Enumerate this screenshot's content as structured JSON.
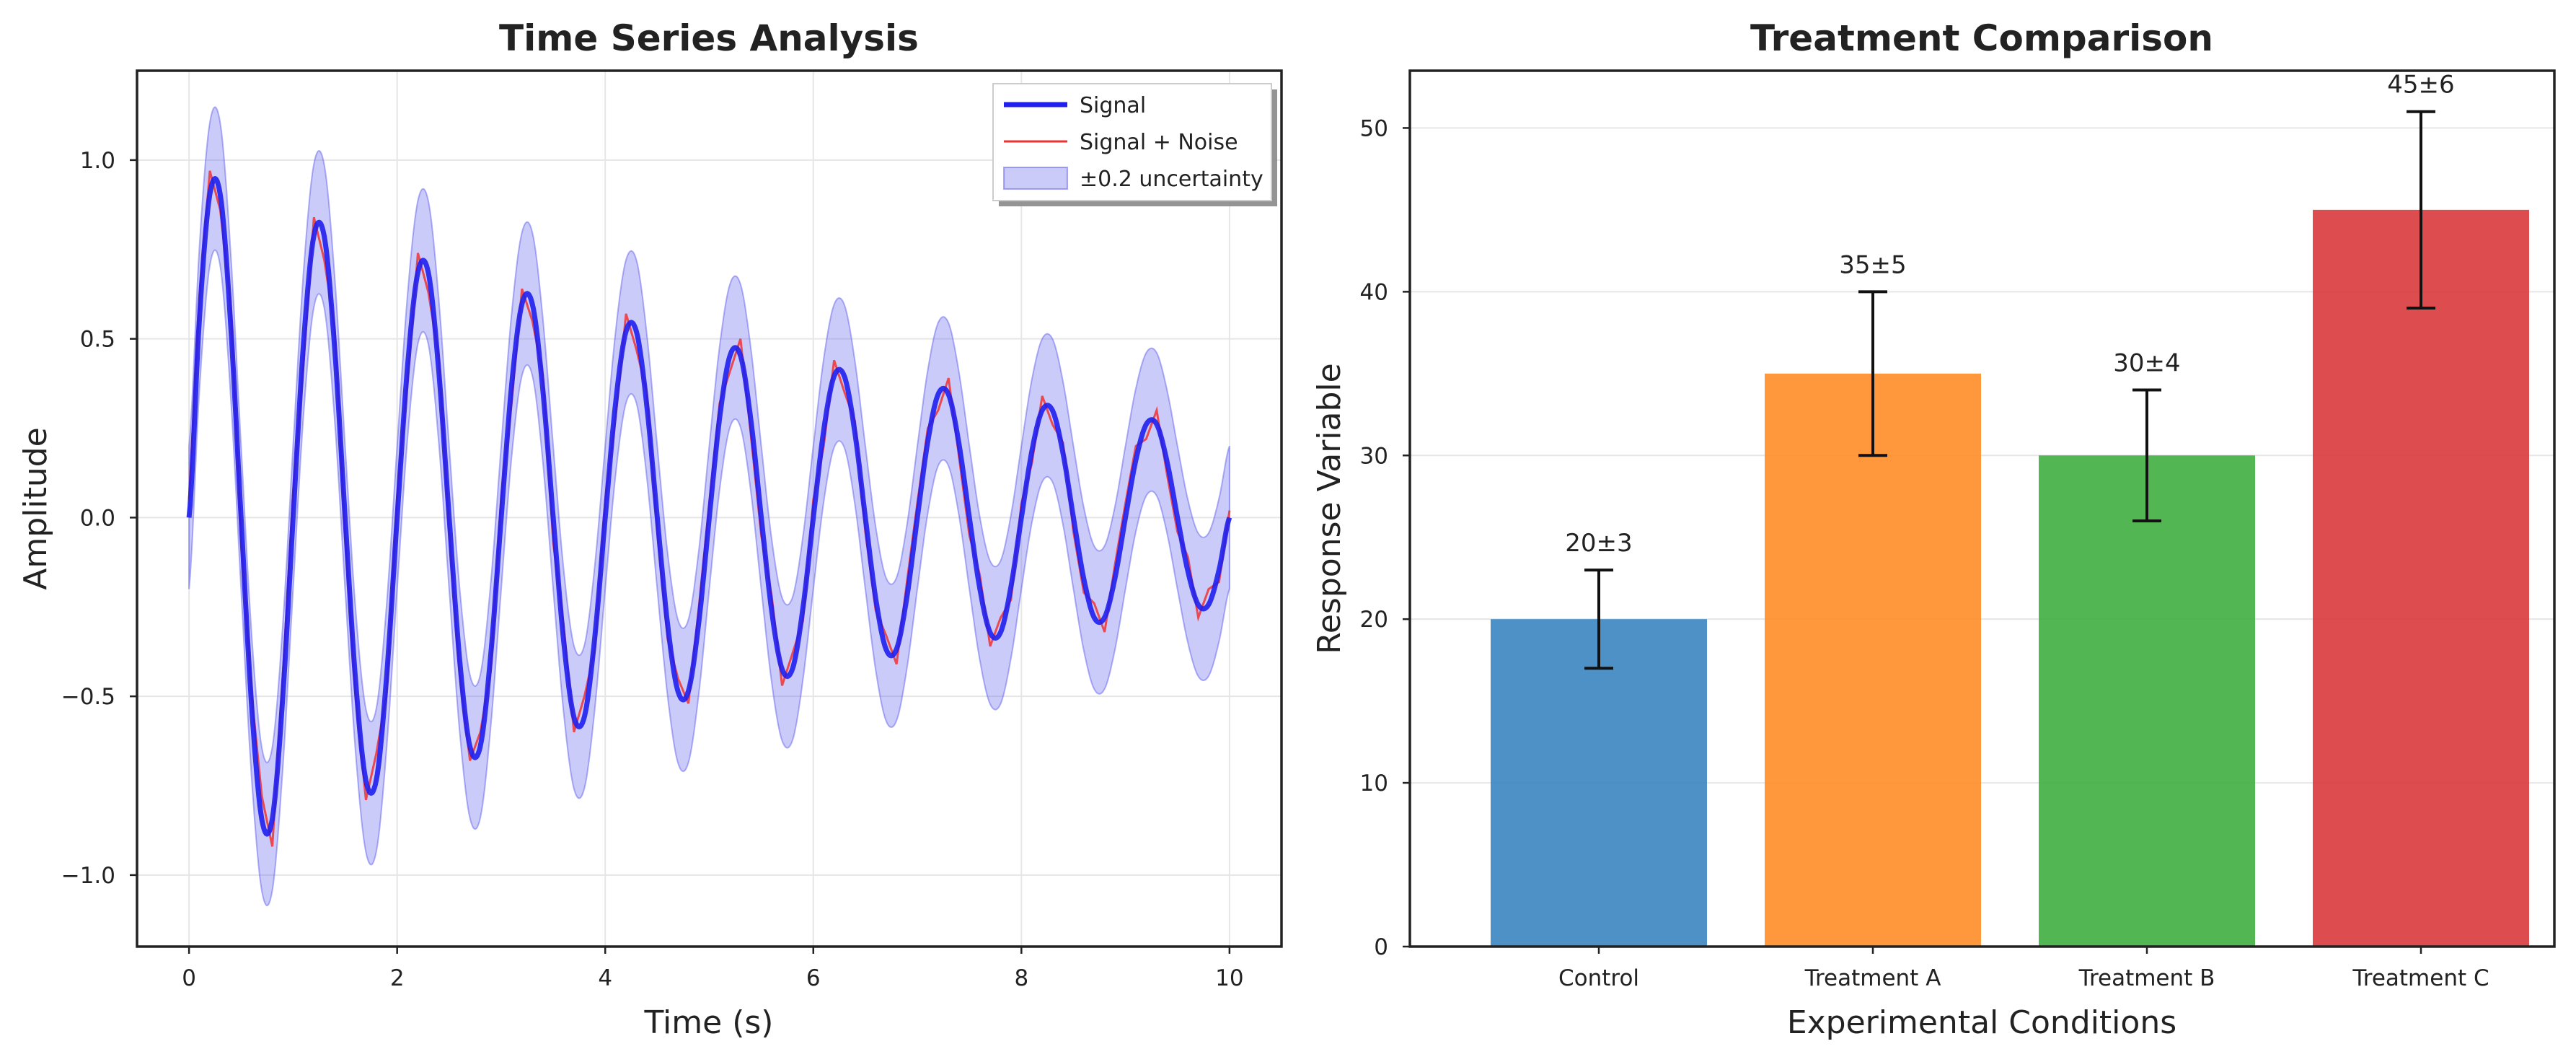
{
  "chart_data": [
    {
      "type": "line",
      "title": "Time Series Analysis",
      "xlabel": "Time (s)",
      "ylabel": "Amplitude",
      "xlim": [
        -0.5,
        10.5
      ],
      "ylim": [
        -1.2,
        1.25
      ],
      "xticks": [
        0,
        2,
        4,
        6,
        8,
        10
      ],
      "xtick_labels": [
        "0",
        "2",
        "4",
        "6",
        "8",
        "10"
      ],
      "yticks": [
        -1.0,
        -0.5,
        0.0,
        0.5,
        1.0
      ],
      "ytick_labels": [
        "−1.0",
        "−0.5",
        "0.0",
        "0.5",
        "1.0"
      ],
      "grid": true,
      "legend": "top-right",
      "series": [
        {
          "name": "Signal",
          "color": "#1f1fee",
          "style": "solid-thick",
          "x": [
            0,
            0.1,
            0.2,
            0.3,
            0.4,
            0.5,
            0.6,
            0.7,
            0.8,
            0.9,
            1.0,
            1.1,
            1.2,
            1.3,
            1.4,
            1.5,
            1.6,
            1.7,
            1.8,
            1.9,
            2.0,
            2.1,
            2.2,
            2.3,
            2.4,
            2.5,
            2.6,
            2.7,
            2.8,
            2.9,
            3.0,
            3.1,
            3.2,
            3.3,
            3.4,
            3.5,
            3.6,
            3.7,
            3.8,
            3.9,
            4.0,
            4.1,
            4.2,
            4.3,
            4.4,
            4.5,
            4.6,
            4.7,
            4.8,
            4.9,
            5.0,
            5.1,
            5.2,
            5.3,
            5.4,
            5.5,
            5.6,
            5.7,
            5.8,
            5.9,
            6.0,
            6.1,
            6.2,
            6.3,
            6.4,
            6.5,
            6.6,
            6.7,
            6.8,
            6.9,
            7.0,
            7.1,
            7.2,
            7.3,
            7.4,
            7.5,
            7.6,
            7.7,
            7.8,
            7.9,
            8.0,
            8.1,
            8.2,
            8.3,
            8.4,
            8.5,
            8.6,
            8.7,
            8.8,
            8.9,
            9.0,
            9.1,
            9.2,
            9.3,
            9.4,
            9.5,
            9.6,
            9.7,
            9.8,
            9.9,
            10.0
          ],
          "y": [
            0,
            0.558,
            0.905,
            0.903,
            0.541,
            0,
            -0.521,
            -0.845,
            -0.843,
            -0.505,
            0,
            0.486,
            0.789,
            0.786,
            0.472,
            0,
            -0.454,
            -0.736,
            -0.734,
            -0.44,
            0,
            0.423,
            0.687,
            0.685,
            0.411,
            0,
            -0.395,
            -0.641,
            -0.639,
            -0.383,
            0,
            0.369,
            0.598,
            0.597,
            0.358,
            0,
            -0.344,
            -0.559,
            -0.557,
            -0.334,
            0,
            0.321,
            0.521,
            0.52,
            0.312,
            0,
            -0.3,
            -0.487,
            -0.485,
            -0.291,
            0,
            0.28,
            0.454,
            0.453,
            0.272,
            0,
            -0.261,
            -0.424,
            -0.423,
            -0.254,
            0,
            0.244,
            0.396,
            0.394,
            0.237,
            0,
            -0.227,
            -0.369,
            -0.368,
            -0.221,
            0,
            0.212,
            0.345,
            0.344,
            0.206,
            0,
            -0.198,
            -0.322,
            -0.321,
            -0.193,
            0,
            0.185,
            0.3,
            0.299,
            0.18,
            0,
            -0.172,
            -0.28,
            -0.279,
            -0.168,
            0,
            0.161,
            0.261,
            0.261,
            0.156,
            0,
            -0.15,
            -0.244,
            -0.243,
            -0.146,
            0
          ]
        },
        {
          "name": "Signal + Noise",
          "color": "#ee3333",
          "style": "solid-thin",
          "x": [
            0,
            0.1,
            0.2,
            0.3,
            0.4,
            0.5,
            0.6,
            0.7,
            0.8,
            0.9,
            1.0,
            1.1,
            1.2,
            1.3,
            1.4,
            1.5,
            1.6,
            1.7,
            1.8,
            1.9,
            2.0,
            2.1,
            2.2,
            2.3,
            2.4,
            2.5,
            2.6,
            2.7,
            2.8,
            2.9,
            3.0,
            3.1,
            3.2,
            3.3,
            3.4,
            3.5,
            3.6,
            3.7,
            3.8,
            3.9,
            4.0,
            4.1,
            4.2,
            4.3,
            4.4,
            4.5,
            4.6,
            4.7,
            4.8,
            4.9,
            5.0,
            5.1,
            5.2,
            5.3,
            5.4,
            5.5,
            5.6,
            5.7,
            5.8,
            5.9,
            6.0,
            6.1,
            6.2,
            6.3,
            6.4,
            6.5,
            6.6,
            6.7,
            6.8,
            6.9,
            7.0,
            7.1,
            7.2,
            7.3,
            7.4,
            7.5,
            7.6,
            7.7,
            7.8,
            7.9,
            8.0,
            8.1,
            8.2,
            8.3,
            8.4,
            8.5,
            8.6,
            8.7,
            8.8,
            8.9,
            9.0,
            9.1,
            9.2,
            9.3,
            9.4,
            9.5,
            9.6,
            9.7,
            9.8,
            9.9,
            10.0
          ],
          "y": [
            0.05,
            0.62,
            0.97,
            0.86,
            0.6,
            -0.06,
            -0.49,
            -0.78,
            -0.92,
            -0.45,
            0.07,
            0.43,
            0.84,
            0.72,
            0.53,
            -0.05,
            -0.5,
            -0.79,
            -0.66,
            -0.49,
            0.06,
            0.38,
            0.74,
            0.63,
            0.45,
            -0.04,
            -0.44,
            -0.68,
            -0.6,
            -0.43,
            0.06,
            0.32,
            0.64,
            0.55,
            0.4,
            -0.07,
            -0.3,
            -0.6,
            -0.5,
            -0.37,
            0.05,
            0.28,
            0.57,
            0.47,
            0.35,
            -0.04,
            -0.34,
            -0.45,
            -0.52,
            -0.25,
            0.04,
            0.32,
            0.41,
            0.5,
            0.23,
            -0.05,
            -0.22,
            -0.47,
            -0.38,
            -0.29,
            0.05,
            0.2,
            0.44,
            0.35,
            0.27,
            -0.04,
            -0.26,
            -0.33,
            -0.41,
            -0.18,
            0.04,
            0.25,
            0.3,
            0.39,
            0.17,
            -0.05,
            -0.16,
            -0.36,
            -0.28,
            -0.23,
            0.04,
            0.15,
            0.34,
            0.26,
            0.21,
            -0.04,
            -0.21,
            -0.24,
            -0.32,
            -0.13,
            0.04,
            0.2,
            0.22,
            0.3,
            0.12,
            -0.04,
            -0.11,
            -0.28,
            -0.2,
            -0.18,
            0.02
          ]
        },
        {
          "name": "±0.2 uncertainty",
          "color": "#7777ee",
          "style": "band",
          "band_halfwidth": 0.2
        }
      ]
    },
    {
      "type": "bar",
      "title": "Treatment Comparison",
      "xlabel": "Experimental Conditions",
      "ylabel": "Response Variable",
      "ylim": [
        0,
        53.5
      ],
      "yticks": [
        0,
        10,
        20,
        30,
        40,
        50
      ],
      "ytick_labels": [
        "0",
        "10",
        "20",
        "30",
        "40",
        "50"
      ],
      "grid": true,
      "categories": [
        "Control",
        "Treatment A",
        "Treatment B",
        "Treatment C"
      ],
      "values": [
        20,
        35,
        30,
        45
      ],
      "errors": [
        3,
        5,
        4,
        6
      ],
      "data_labels": [
        "20±3",
        "35±5",
        "30±4",
        "45±6"
      ],
      "colors": [
        "#3a85c0",
        "#ff8c28",
        "#3fae3f",
        "#d9393b"
      ]
    }
  ]
}
